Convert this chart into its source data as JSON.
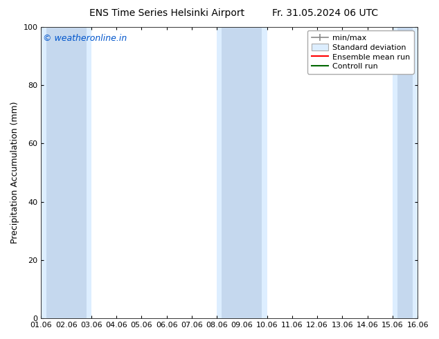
{
  "title_left": "ENS Time Series Helsinki Airport",
  "title_right": "Fr. 31.05.2024 06 UTC",
  "ylabel": "Precipitation Accumulation (mm)",
  "watermark": "© weatheronline.in",
  "watermark_color": "#0055cc",
  "ylim": [
    0,
    100
  ],
  "xlim_min": 0,
  "xlim_max": 15,
  "xtick_labels": [
    "01.06",
    "02.06",
    "03.06",
    "04.06",
    "05.06",
    "06.06",
    "07.06",
    "08.06",
    "09.06",
    "10.06",
    "11.06",
    "12.06",
    "13.06",
    "14.06",
    "15.06",
    "16.06"
  ],
  "ytick_values": [
    0,
    20,
    40,
    60,
    80,
    100
  ],
  "shade_regions_outer": [
    {
      "x_start": 0.0,
      "x_end": 2.0
    },
    {
      "x_start": 7.0,
      "x_end": 9.0
    },
    {
      "x_start": 14.0,
      "x_end": 15.0
    }
  ],
  "shade_regions_inner": [
    {
      "x_start": 0.2,
      "x_end": 1.8
    },
    {
      "x_start": 7.2,
      "x_end": 8.8
    },
    {
      "x_start": 14.2,
      "x_end": 14.8
    }
  ],
  "shade_color_outer": "#ddeeff",
  "shade_color_inner": "#c5d8ee",
  "bg_color": "#ffffff",
  "plot_bg_color": "#ffffff",
  "legend_labels": [
    "min/max",
    "Standard deviation",
    "Ensemble mean run",
    "Controll run"
  ],
  "legend_color_minmax": "#888888",
  "legend_color_std": "#c5d8ee",
  "legend_color_std_edge": "#aaaaaa",
  "legend_color_ensemble": "#ff0000",
  "legend_color_control": "#006600",
  "title_fontsize": 10,
  "ylabel_fontsize": 9,
  "tick_fontsize": 8,
  "watermark_fontsize": 9,
  "legend_fontsize": 8
}
